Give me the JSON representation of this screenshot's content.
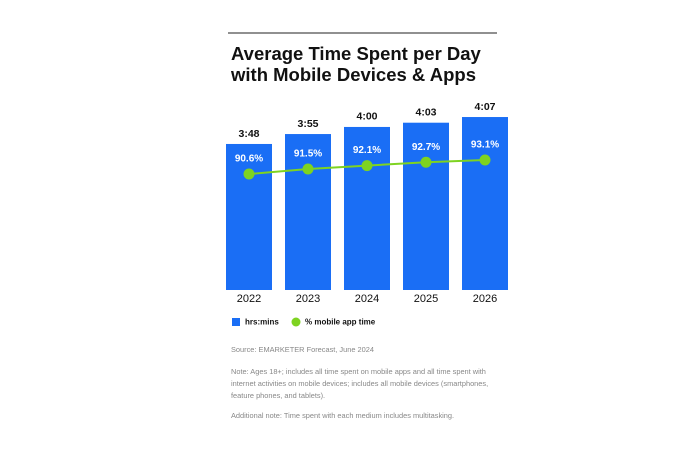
{
  "chart_data": {
    "type": "bar-line",
    "title": "Average Time Spent per Day",
    "subtitle": "with Mobile Devices & Apps",
    "categories": [
      "2022",
      "2023",
      "2024",
      "2025",
      "2026"
    ],
    "series": [
      {
        "name": "hrs:mins",
        "color": "#1a6ef5",
        "type": "bar",
        "values": [
          228,
          235,
          240,
          243,
          247
        ],
        "value_labels": [
          "3:48",
          "3:55",
          "4:00",
          "4:03",
          "4:07"
        ]
      },
      {
        "name": "% mobile app time",
        "color": "#7ed321",
        "type": "line",
        "axis": "y2",
        "values": [
          90.6,
          91.5,
          92.1,
          92.7,
          93.1
        ],
        "value_labels": [
          "90.6%",
          "91.5%",
          "92.1%",
          "92.7%",
          "93.1%"
        ]
      }
    ],
    "ylim": [
      125,
      260
    ],
    "y2lim": [
      70,
      104
    ],
    "source": "Source: EMARKETER Forecast, June 2024",
    "note": "Note: Ages 18+; includes all time spent on mobile apps and all time spent with internet activities on mobile devices; includes all mobile devices (smartphones, feature phones, and tablets).",
    "additional_note": "Additional note: Time spent with each medium includes multitasking."
  }
}
